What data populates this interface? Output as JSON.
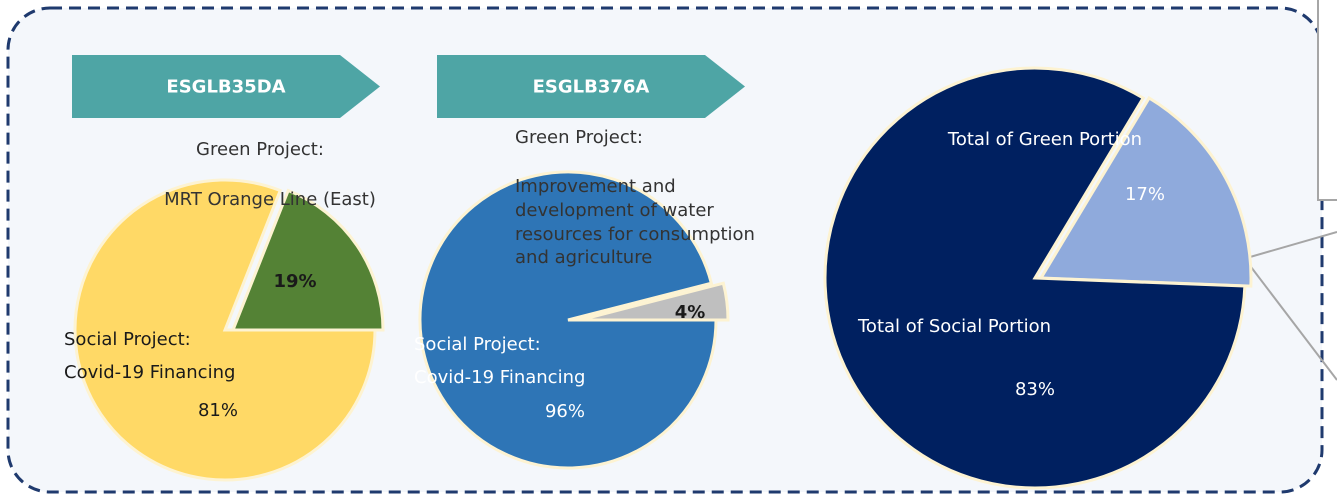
{
  "chart_data": [
    {
      "type": "pie",
      "title": "ESGLB35DA",
      "categories": [
        [
          "Green Project:",
          "MRT Orange Line (East)"
        ],
        [
          "Social Project:",
          "Covid-19 Financing"
        ]
      ],
      "values": [
        19,
        81
      ],
      "value_labels": [
        "19%",
        "81%"
      ],
      "colors": [
        "#548235",
        "#ffd966"
      ]
    },
    {
      "type": "pie",
      "title": "ESGLB376A",
      "categories": [
        [
          "Green Project:",
          "Improvement and",
          "development of water",
          "resources for consumption",
          "and agriculture"
        ],
        [
          "Social Project:",
          "Covid-19 Financing"
        ]
      ],
      "values": [
        4,
        96
      ],
      "value_labels": [
        "4%",
        "96%"
      ],
      "colors": [
        "#bfbfbf",
        "#2e75b6"
      ]
    },
    {
      "type": "pie",
      "categories": [
        [
          "Total of Green Portion"
        ],
        [
          "Total of Social Portion"
        ]
      ],
      "values": [
        17,
        83
      ],
      "value_labels": [
        "17%",
        "83%"
      ],
      "colors": [
        "#8faadc",
        "#002060"
      ]
    }
  ]
}
